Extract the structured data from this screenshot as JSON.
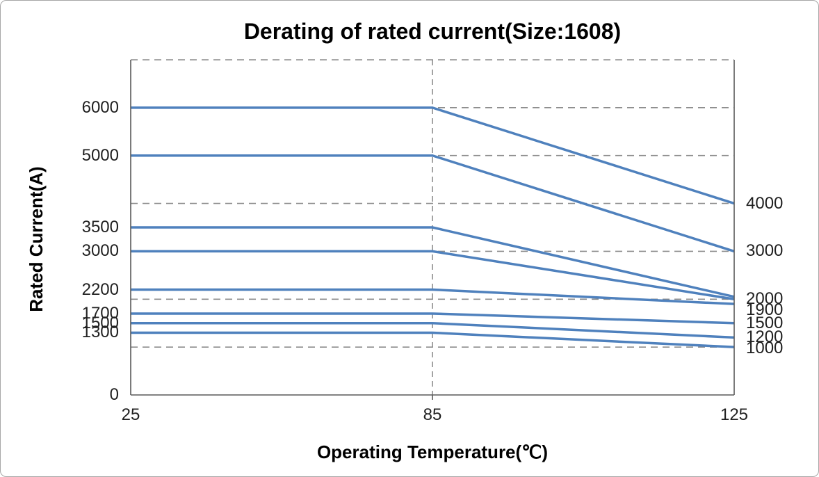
{
  "chart_data": {
    "type": "line",
    "title": "Derating of rated current(Size:1608)",
    "xlabel": "Operating Temperature(℃)",
    "ylabel": "Rated Current(A)",
    "x_categories": [
      25,
      85,
      125
    ],
    "x_tick_labels": [
      "25",
      "85",
      "125"
    ],
    "ylim": [
      0,
      7000
    ],
    "gridlines_y": [
      1000,
      2000,
      3000,
      4000,
      5000,
      6000,
      7000
    ],
    "grid_style": "dashed",
    "vertical_guide_at_x": 85,
    "left_axis_tick_labels": [
      "6000",
      "5000",
      "3500",
      "3000",
      "2200",
      "1700",
      "1500",
      "1300",
      "0"
    ],
    "right_end_labels": [
      "4000",
      "3000",
      "2000",
      "1900",
      "1500",
      "1200",
      "1000"
    ],
    "legend": "none",
    "series": [
      {
        "name": "6000",
        "points": [
          [
            25,
            6000
          ],
          [
            85,
            6000
          ],
          [
            125,
            4000
          ]
        ]
      },
      {
        "name": "5000",
        "points": [
          [
            25,
            5000
          ],
          [
            85,
            5000
          ],
          [
            125,
            3000
          ]
        ]
      },
      {
        "name": "3500",
        "points": [
          [
            25,
            3500
          ],
          [
            85,
            3500
          ],
          [
            125,
            2050
          ]
        ]
      },
      {
        "name": "3000",
        "points": [
          [
            25,
            3000
          ],
          [
            85,
            3000
          ],
          [
            125,
            2000
          ]
        ]
      },
      {
        "name": "2200",
        "points": [
          [
            25,
            2200
          ],
          [
            85,
            2200
          ],
          [
            125,
            1900
          ]
        ]
      },
      {
        "name": "1700",
        "points": [
          [
            25,
            1700
          ],
          [
            85,
            1700
          ],
          [
            125,
            1500
          ]
        ]
      },
      {
        "name": "1500",
        "points": [
          [
            25,
            1500
          ],
          [
            85,
            1500
          ],
          [
            125,
            1200
          ]
        ]
      },
      {
        "name": "1300",
        "points": [
          [
            25,
            1300
          ],
          [
            85,
            1300
          ],
          [
            125,
            1000
          ]
        ]
      }
    ],
    "colors": {
      "line": "#4F81BD",
      "grid": "#8C8C8C",
      "axis": "#595959",
      "text": "#212121",
      "title": "#000000"
    }
  }
}
